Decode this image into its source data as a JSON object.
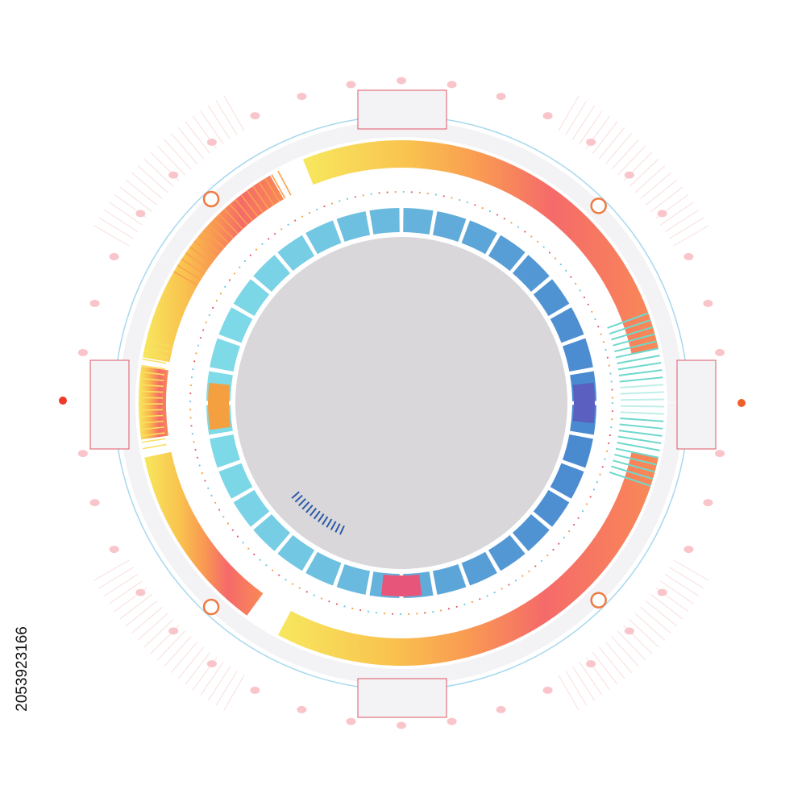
{
  "watermark_id": "2053923166"
}
